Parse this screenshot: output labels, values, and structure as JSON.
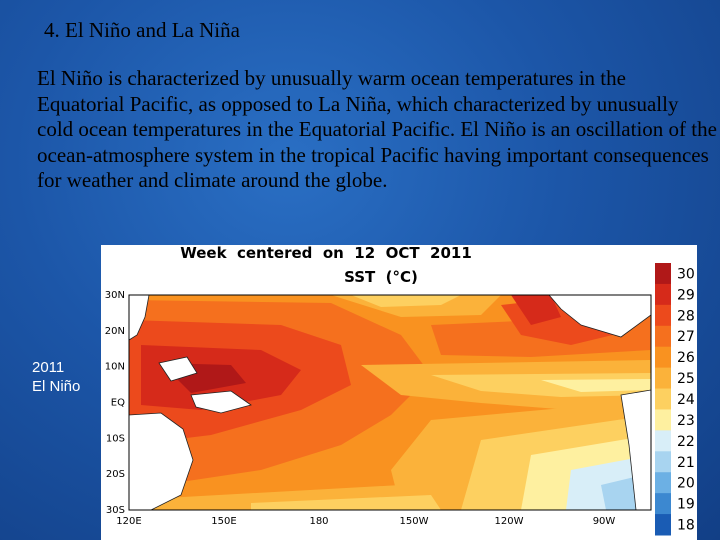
{
  "slide": {
    "title": "4. El Niño and La Niña",
    "body": "El Niño is characterized by unusually warm ocean temperatures in the Equatorial Pacific, as opposed to La Niña, which characterized by unusually cold ocean temperatures in the Equatorial Pacific. El Niño is an oscillation of the ocean-atmosphere system in the tropical Pacific having important consequences for weather and climate around the globe.",
    "caption_year": "2011",
    "caption_event": "El Niño"
  },
  "figure": {
    "title_line1": "Week  centered  on  12  OCT  2011",
    "title_line2": "SST  (°C)",
    "lat_labels": [
      "30N",
      "20N",
      "10N",
      "EQ",
      "10S",
      "20S",
      "30S"
    ],
    "lon_labels": [
      "120E",
      "150E",
      "180",
      "150W",
      "120W",
      "90W"
    ],
    "colorbar": {
      "labels": [
        "30",
        "29",
        "28",
        "27",
        "26",
        "25",
        "24",
        "23",
        "22",
        "21",
        "20",
        "19",
        "18"
      ],
      "colors": [
        "#b01818",
        "#d62a1a",
        "#ec4a1c",
        "#f5701e",
        "#f99220",
        "#fbb23a",
        "#fdd060",
        "#fef0a0",
        "#d8eef8",
        "#a8d4f0",
        "#6cb0e4",
        "#3c88d0",
        "#1a5cb4"
      ]
    }
  }
}
